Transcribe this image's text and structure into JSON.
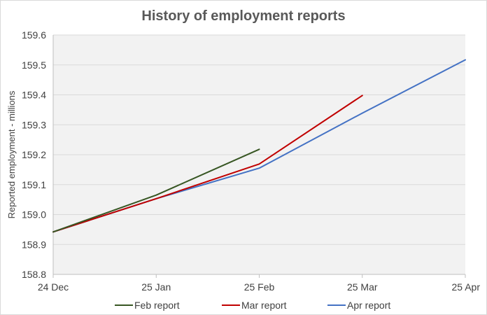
{
  "chart_data": {
    "type": "line",
    "title": "History  of employment reports",
    "xlabel": "",
    "ylabel": "Reported employment - millions",
    "ylim": [
      158.8,
      159.6
    ],
    "yticks": [
      "158.8",
      "158.9",
      "159.0",
      "159.1",
      "159.2",
      "159.3",
      "159.4",
      "159.5",
      "159.6"
    ],
    "categories": [
      "24 Dec",
      "25 Jan",
      "25 Feb",
      "25 Mar",
      "25 Apr"
    ],
    "grid": true,
    "legend_position": "bottom",
    "series": [
      {
        "name": "Feb report",
        "color": "#375623",
        "values": [
          158.942,
          159.065,
          159.218,
          null,
          null
        ]
      },
      {
        "name": "Mar report",
        "color": "#c00000",
        "values": [
          158.942,
          159.053,
          159.169,
          159.398,
          null
        ]
      },
      {
        "name": "Apr report",
        "color": "#4472c4",
        "values": [
          158.942,
          159.053,
          159.155,
          159.339,
          159.517
        ]
      }
    ]
  },
  "colors": {
    "plot_background": "#f2f2f2",
    "gridline": "#d9d9d9",
    "axis_line": "#bfbfbf"
  }
}
